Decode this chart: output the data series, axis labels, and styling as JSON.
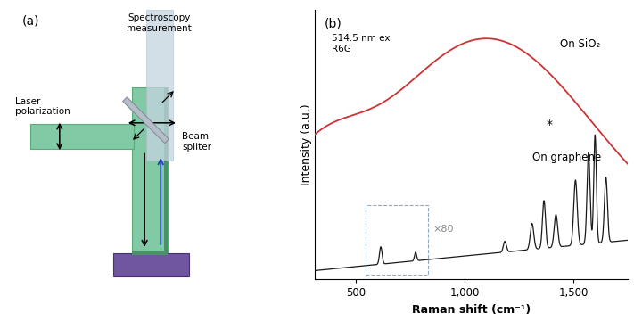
{
  "panel_a_label": "(a)",
  "panel_b_label": "(b)",
  "laser_polarization_label": "Laser\npolarization",
  "spectroscopy_label": "Spectroscopy\nmeasurement",
  "beam_splitter_label": "Beam\nspliter",
  "annotation_514": "514.5 nm ex\nR6G",
  "on_sio2_label": "On SiO₂",
  "on_graphene_label": "On graphene",
  "x80_label": "×80",
  "star_label": "*",
  "xlabel": "Raman shift (cm⁻¹)",
  "ylabel": "Intensity (a.u.)",
  "x_ticks": [
    500,
    1000,
    1500
  ],
  "x_tick_labels": [
    "500",
    "1,000",
    "1,500"
  ],
  "xlim": [
    310,
    1750
  ],
  "red_line_color": "#cc3333",
  "black_line_color": "#1a1a1a",
  "green_color": "#82c9a5",
  "green_edge_color": "#5aaa7a",
  "green_dark_color": "#4a9068",
  "purple_color": "#7055a0",
  "gray_beam_color": "#c5d5e0",
  "dashed_box_color": "#90aabf"
}
